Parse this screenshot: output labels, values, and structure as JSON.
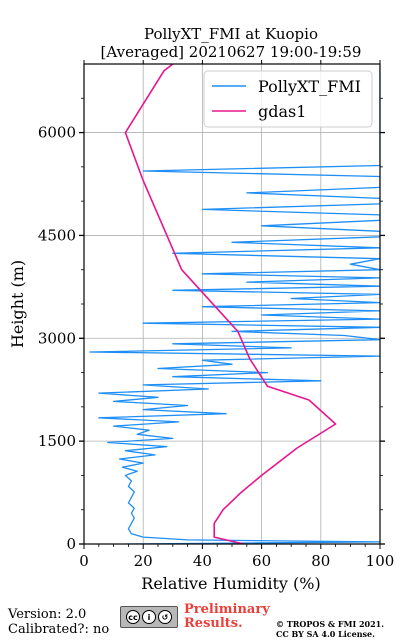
{
  "title_line1": "PollyXT_FMI at Kuopio",
  "title_line2": "[Averaged] 20210627 19:00-19:59",
  "footer": {
    "version": "Version: 2.0",
    "calibrated": "Calibrated?: no",
    "preliminary_line1": "Preliminary",
    "preliminary_line2": "Results.",
    "copyright_line1": "© TROPOS & FMI 2021.",
    "copyright_line2": "CC BY SA 4.0 License.",
    "license_badge_icons": [
      "cc-icon",
      "by-icon",
      "sa-icon"
    ]
  },
  "chart_data": {
    "type": "line",
    "xlabel": "Relative Humidity (%)",
    "ylabel": "Height (m)",
    "xlim": [
      0,
      100
    ],
    "ylim": [
      0,
      7000
    ],
    "xticks": [
      0,
      20,
      40,
      60,
      80,
      100
    ],
    "yticks": [
      0,
      1500,
      3000,
      4500,
      6000
    ],
    "grid": true,
    "legend_position": "top-right",
    "series": [
      {
        "name": "PollyXT_FMI",
        "color": "#1f8ff5",
        "points": [
          [
            14,
            0
          ],
          [
            55,
            15
          ],
          [
            100,
            30
          ],
          [
            35,
            60
          ],
          [
            20,
            100
          ],
          [
            16,
            150
          ],
          [
            15,
            220
          ],
          [
            16,
            300
          ],
          [
            17,
            380
          ],
          [
            16,
            450
          ],
          [
            17,
            520
          ],
          [
            15,
            600
          ],
          [
            16,
            680
          ],
          [
            17,
            760
          ],
          [
            15,
            840
          ],
          [
            16,
            920
          ],
          [
            14,
            1000
          ],
          [
            18,
            1060
          ],
          [
            13,
            1120
          ],
          [
            20,
            1180
          ],
          [
            12,
            1240
          ],
          [
            24,
            1300
          ],
          [
            14,
            1360
          ],
          [
            28,
            1420
          ],
          [
            8,
            1480
          ],
          [
            30,
            1540
          ],
          [
            18,
            1600
          ],
          [
            22,
            1660
          ],
          [
            10,
            1720
          ],
          [
            32,
            1780
          ],
          [
            5,
            1840
          ],
          [
            48,
            1900
          ],
          [
            20,
            1960
          ],
          [
            35,
            2020
          ],
          [
            10,
            2080
          ],
          [
            25,
            2140
          ],
          [
            5,
            2200
          ],
          [
            42,
            2260
          ],
          [
            20,
            2320
          ],
          [
            80,
            2380
          ],
          [
            30,
            2440
          ],
          [
            62,
            2500
          ],
          [
            25,
            2560
          ],
          [
            50,
            2620
          ],
          [
            40,
            2680
          ],
          [
            100,
            2740
          ],
          [
            2,
            2800
          ],
          [
            70,
            2860
          ],
          [
            30,
            2920
          ],
          [
            100,
            2980
          ],
          [
            88,
            3040
          ],
          [
            50,
            3100
          ],
          [
            100,
            3160
          ],
          [
            20,
            3220
          ],
          [
            100,
            3280
          ],
          [
            60,
            3340
          ],
          [
            100,
            3400
          ],
          [
            40,
            3460
          ],
          [
            100,
            3520
          ],
          [
            70,
            3580
          ],
          [
            100,
            3640
          ],
          [
            30,
            3700
          ],
          [
            100,
            3760
          ],
          [
            55,
            3820
          ],
          [
            100,
            3880
          ],
          [
            40,
            3940
          ],
          [
            100,
            4000
          ],
          [
            90,
            4080
          ],
          [
            100,
            4160
          ],
          [
            30,
            4240
          ],
          [
            100,
            4320
          ],
          [
            50,
            4400
          ],
          [
            100,
            4480
          ],
          [
            100,
            4560
          ],
          [
            60,
            4640
          ],
          [
            100,
            4720
          ],
          [
            100,
            4800
          ],
          [
            40,
            4880
          ],
          [
            100,
            4960
          ],
          [
            100,
            5040
          ],
          [
            55,
            5120
          ],
          [
            100,
            5200
          ],
          [
            100,
            5280
          ],
          [
            100,
            5360
          ],
          [
            20,
            5440
          ],
          [
            100,
            5520
          ],
          [
            100,
            5600
          ],
          [
            100,
            5680
          ],
          [
            100,
            5760
          ],
          [
            100,
            5840
          ],
          [
            100,
            5920
          ],
          [
            100,
            6000
          ],
          [
            100,
            6080
          ],
          [
            100,
            6160
          ],
          [
            100,
            6240
          ],
          [
            100,
            6320
          ],
          [
            100,
            6400
          ],
          [
            100,
            6480
          ],
          [
            100,
            6560
          ],
          [
            100,
            6640
          ],
          [
            100,
            6720
          ],
          [
            100,
            6800
          ],
          [
            100,
            6880
          ],
          [
            100,
            6960
          ]
        ]
      },
      {
        "name": "gdas1",
        "color": "#e8168e",
        "points": [
          [
            54,
            0
          ],
          [
            44,
            100
          ],
          [
            44,
            200
          ],
          [
            44,
            300
          ],
          [
            47,
            500
          ],
          [
            53,
            750
          ],
          [
            60,
            1000
          ],
          [
            72,
            1400
          ],
          [
            85,
            1750
          ],
          [
            76,
            2100
          ],
          [
            62,
            2300
          ],
          [
            56,
            2700
          ],
          [
            52,
            3100
          ],
          [
            33,
            4000
          ],
          [
            20,
            5300
          ],
          [
            14,
            6000
          ],
          [
            27,
            6900
          ],
          [
            30,
            7000
          ]
        ]
      }
    ]
  }
}
